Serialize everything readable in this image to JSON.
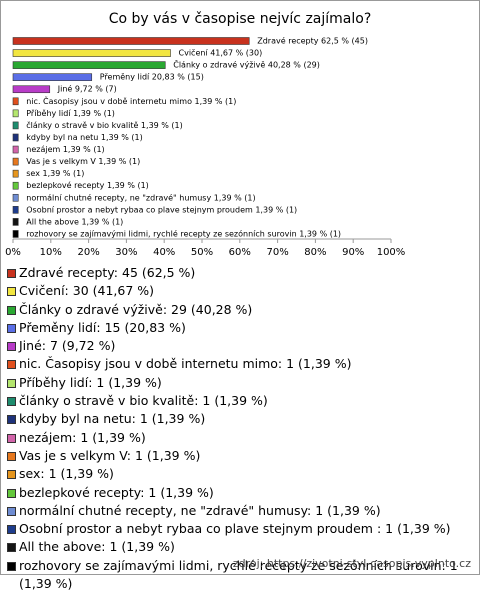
{
  "chart_data": {
    "type": "hbar",
    "title": "Co by vás v časopise nejvíc zajímalo?",
    "categories": [
      "Zdravé recepty",
      "Cvičení",
      "Články o zdravé výživě",
      "Přeměny lidí",
      "Jiné",
      "nic. Časopisy jsou v době internetu mimo",
      "Příběhy lidí",
      "články o stravě v bio kvalitě",
      "kdyby byl na netu",
      "nezájem",
      "Vas je s velkym V",
      "sex",
      "bezlepkové recepty",
      "normální chutné recepty, ne \"zdravé\" humusy",
      "Osobní prostor a nebyt rybaa co plave stejnym proudem ",
      "All the above",
      "rozhovory se zajímavými lidmi, rychlé recepty ze sezónních surovin"
    ],
    "values": [
      62.5,
      41.67,
      40.28,
      20.83,
      9.72,
      1.39,
      1.39,
      1.39,
      1.39,
      1.39,
      1.39,
      1.39,
      1.39,
      1.39,
      1.39,
      1.39,
      1.39
    ],
    "value_labels": [
      "Zdravé recepty 62,5 % (45)",
      "Cvičení 41,67 % (30)",
      "Články o zdravé výživě 40,28 % (29)",
      "Přeměny lidí 20,83 % (15)",
      "Jiné 9,72 % (7)",
      "nic. Časopisy jsou v době internetu mimo 1,39 % (1)",
      "Příběhy lidí 1,39 % (1)",
      "články o stravě v bio kvalitě 1,39 % (1)",
      "kdyby byl na netu 1,39 % (1)",
      "nezájem 1,39 % (1)",
      "Vas je s velkym V 1,39 % (1)",
      "sex 1,39 % (1)",
      "bezlepkové recepty 1,39 % (1)",
      "normální chutné recepty, ne \"zdravé\" humusy 1,39 % (1)",
      "Osobní prostor a nebyt rybaa co plave stejnym proudem  1,39 % (1)",
      "All the above 1,39 % (1)",
      "rozhovory se zajímavými lidmi, rychlé recepty ze sezónních surovin 1,39 % (1)"
    ],
    "legend_labels": [
      "Zdravé recepty: 45 (62,5 %)",
      "Cvičení: 30 (41,67 %)",
      "Články o zdravé výživě: 29 (40,28 %)",
      "Přeměny lidí: 15 (20,83 %)",
      "Jiné: 7 (9,72 %)",
      "nic. Časopisy jsou v době internetu mimo: 1 (1,39 %)",
      "Příběhy lidí: 1 (1,39 %)",
      "články o stravě v bio kvalitě: 1 (1,39 %)",
      "kdyby byl na netu: 1 (1,39 %)",
      "nezájem: 1 (1,39 %)",
      "Vas je s velkym V: 1 (1,39 %)",
      "sex: 1 (1,39 %)",
      "bezlepkové recepty: 1 (1,39 %)",
      "normální chutné recepty, ne \"zdravé\" humusy: 1 (1,39 %)",
      "Osobní prostor a nebyt rybaa co plave stejnym proudem : 1 (1,39 %)",
      "All the above: 1 (1,39 %)",
      "rozhovory se zajímavými lidmi, rychlé recepty ze sezónních surovin: 1 (1,39 %)"
    ],
    "colors": [
      "#c8321e",
      "#f2e640",
      "#2aa832",
      "#5a6ee6",
      "#b83cc8",
      "#e0501e",
      "#b4e66e",
      "#1e8c6e",
      "#1e327a",
      "#d264aa",
      "#e6781e",
      "#e6961e",
      "#64c83c",
      "#6e8cd2",
      "#1e3c8c",
      "#141414",
      "#000000"
    ],
    "xlim": [
      0,
      100
    ],
    "xticks": [
      {
        "value": 0,
        "label": "0%"
      },
      {
        "value": 10,
        "label": "10%"
      },
      {
        "value": 20,
        "label": "20%"
      },
      {
        "value": 30,
        "label": "30%"
      },
      {
        "value": 40,
        "label": "40%"
      },
      {
        "value": 50,
        "label": "50%"
      },
      {
        "value": 60,
        "label": "60%"
      },
      {
        "value": 70,
        "label": "70%"
      },
      {
        "value": 80,
        "label": "80%"
      },
      {
        "value": 90,
        "label": "90%"
      },
      {
        "value": 100,
        "label": "100%"
      }
    ]
  },
  "source": "zdroj: https://zivotni-styl-casopis.vyplnto.cz"
}
